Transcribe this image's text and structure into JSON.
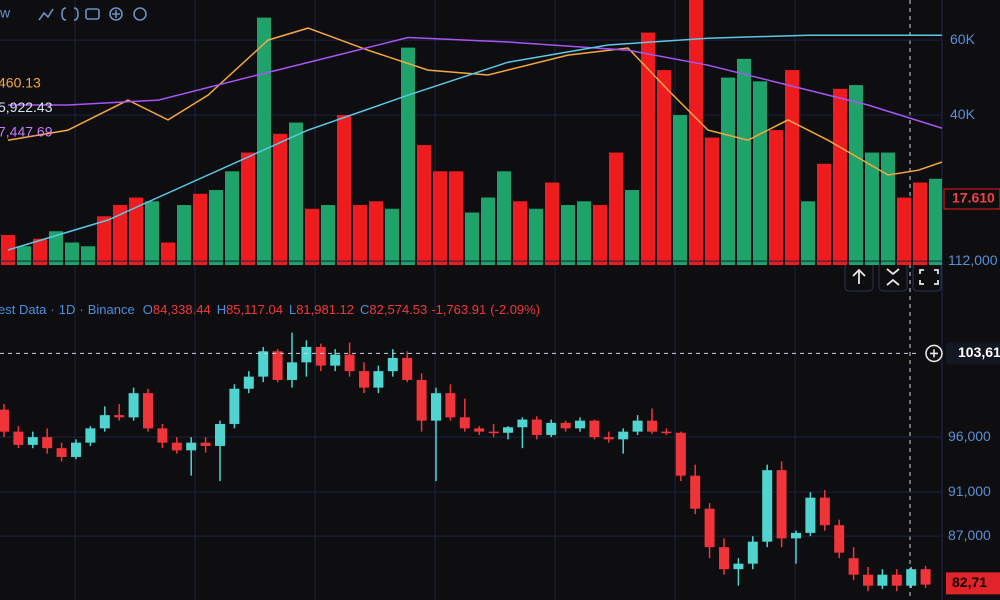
{
  "toolbar": {
    "label": "w"
  },
  "ma_legend": [
    {
      "text": "460.13",
      "color": "#f5a742"
    },
    {
      "text": "5,922.43",
      "color": "#d7e3f4"
    },
    {
      "text": "7,447.69",
      "color": "#c27cf6"
    }
  ],
  "header": {
    "source": "est Data",
    "interval": "1D",
    "exchange": "Binance",
    "ohlc": [
      {
        "key": "O",
        "value": "84,338.44"
      },
      {
        "key": "H",
        "value": "85,117.04"
      },
      {
        "key": "L",
        "value": "81,981.12"
      },
      {
        "key": "C",
        "value": "82,574.53"
      }
    ],
    "change": "-1,763.91",
    "change_pct": "(-2.09%)"
  },
  "chart_data": [
    {
      "type": "bar",
      "values": [
        8,
        5,
        7,
        9,
        6,
        5,
        13,
        16,
        18,
        17,
        6,
        16,
        19,
        20,
        25,
        30,
        66,
        35,
        38,
        15,
        16,
        40,
        16,
        17,
        15,
        58,
        32,
        25,
        25,
        14,
        18,
        25,
        17,
        15,
        22,
        16,
        17,
        16,
        30,
        20,
        62,
        52,
        40,
        72,
        34,
        50,
        55,
        49,
        36,
        52,
        17,
        27,
        47,
        48,
        30,
        30,
        18,
        22,
        23
      ],
      "colors": [
        "#ee1b1f",
        "#1fa36a",
        "#ee1b1f",
        "#1fa36a",
        "#1fa36a",
        "#1fa36a",
        "#ee1b1f",
        "#ee1b1f",
        "#ee1b1f",
        "#1fa36a",
        "#ee1b1f",
        "#1fa36a",
        "#ee1b1f",
        "#1fa36a",
        "#1fa36a",
        "#ee1b1f",
        "#1fa36a",
        "#ee1b1f",
        "#1fa36a",
        "#ee1b1f",
        "#1fa36a",
        "#ee1b1f",
        "#ee1b1f",
        "#ee1b1f",
        "#1fa36a",
        "#1fa36a",
        "#ee1b1f",
        "#ee1b1f",
        "#ee1b1f",
        "#1fa36a",
        "#1fa36a",
        "#1fa36a",
        "#ee1b1f",
        "#1fa36a",
        "#ee1b1f",
        "#1fa36a",
        "#1fa36a",
        "#ee1b1f",
        "#ee1b1f",
        "#1fa36a",
        "#ee1b1f",
        "#ee1b1f",
        "#1fa36a",
        "#ee1b1f",
        "#ee1b1f",
        "#1fa36a",
        "#1fa36a",
        "#1fa36a",
        "#ee1b1f",
        "#ee1b1f",
        "#1fa36a",
        "#ee1b1f",
        "#ee1b1f",
        "#1fa36a",
        "#1fa36a",
        "#1fa36a",
        "#ee1b1f",
        "#ee1b1f",
        "#1fa36a"
      ],
      "ylim": [
        0,
        70.7
      ],
      "yticks": [
        {
          "value": 40,
          "label": "40K"
        },
        {
          "value": 60,
          "label": "60K"
        }
      ],
      "lines": [
        {
          "color": "#f5a742",
          "x": [
            0,
            3.75,
            7.5,
            10,
            12.5,
            16.25,
            18.75,
            22.5,
            26.25,
            30,
            35,
            38.75,
            41.25,
            43.75,
            46.25,
            48.75,
            51.25,
            55,
            56.9,
            58.75
          ],
          "values": [
            33.3,
            36,
            44,
            38.7,
            45.3,
            60,
            63.2,
            57.3,
            52,
            50.7,
            56,
            57.9,
            46.7,
            36,
            33.3,
            38.7,
            33.3,
            24,
            25.3,
            28
          ]
        },
        {
          "color": "#a855f7",
          "x": [
            0,
            3.75,
            9.4,
            15.6,
            20.6,
            25,
            31.25,
            38.75,
            43.75,
            48.75,
            53.75,
            58.75
          ],
          "values": [
            42.7,
            42.7,
            44,
            50.7,
            56,
            60.7,
            59.5,
            57.3,
            53.3,
            48,
            42.7,
            36
          ]
        },
        {
          "color": "#5bc8e8",
          "x": [
            0,
            6.25,
            12.5,
            18.75,
            25,
            31.25,
            37.5,
            43.75,
            50,
            58.75
          ],
          "values": [
            4,
            12,
            24,
            36,
            45.3,
            54.1,
            58.7,
            60.5,
            61.3,
            61.3
          ]
        }
      ],
      "last_value": {
        "value": 17.61,
        "label": "17.610"
      },
      "grid": true
    },
    {
      "type": "candlestick",
      "open": [
        98500,
        96500,
        95300,
        96000,
        95000,
        94200,
        95500,
        96800,
        98000,
        97800,
        100000,
        96800,
        95500,
        94800,
        95500,
        95200,
        97200,
        100400,
        101500,
        103800,
        101200,
        102800,
        104200,
        102500,
        103500,
        102000,
        100500,
        102000,
        103200,
        101200,
        97500,
        100000,
        97800,
        96800,
        96500,
        96400,
        96900,
        97600,
        96200,
        97300,
        96800,
        97500,
        96000,
        95800,
        96500,
        97500,
        96500,
        96400,
        92500,
        89500,
        86000,
        84000,
        84500,
        86500,
        93000,
        86800,
        87300,
        90500,
        88000,
        85000,
        83500,
        82500,
        83500,
        82500,
        84000
      ],
      "high": [
        99000,
        97000,
        96500,
        96800,
        95500,
        95800,
        97000,
        98800,
        99000,
        100500,
        100400,
        97200,
        96000,
        96000,
        96000,
        97500,
        100800,
        102000,
        104200,
        104000,
        105500,
        104800,
        104500,
        104000,
        104600,
        102800,
        102500,
        104000,
        103800,
        101800,
        100500,
        100800,
        99500,
        97000,
        97200,
        97000,
        97800,
        97900,
        97600,
        97500,
        97800,
        97600,
        96500,
        96800,
        98000,
        98600,
        96800,
        96500,
        93500,
        90000,
        86800,
        85000,
        87000,
        93500,
        93800,
        87500,
        91000,
        91200,
        88500,
        86000,
        84200,
        84000,
        84000,
        84200,
        84300
      ],
      "low": [
        96000,
        95000,
        95000,
        94500,
        93800,
        94000,
        95200,
        96500,
        97500,
        97500,
        96500,
        95000,
        94500,
        92500,
        94600,
        92000,
        96800,
        100000,
        101000,
        101000,
        100500,
        101500,
        102000,
        102000,
        101500,
        100000,
        100000,
        101500,
        101000,
        96500,
        92000,
        97500,
        96500,
        96200,
        96000,
        95800,
        95000,
        95800,
        96000,
        96500,
        96500,
        95800,
        95500,
        94500,
        96200,
        96300,
        96200,
        92000,
        89000,
        85000,
        83500,
        82500,
        84000,
        86000,
        86000,
        84500,
        87000,
        87500,
        85000,
        83000,
        82000,
        82200,
        82000,
        82300,
        82300
      ],
      "close": [
        96500,
        95300,
        96000,
        95000,
        94200,
        95500,
        96800,
        98000,
        97800,
        100000,
        96800,
        95500,
        94800,
        95500,
        95200,
        97200,
        100400,
        101500,
        103800,
        101200,
        102800,
        104200,
        102500,
        103500,
        102000,
        100500,
        102000,
        103200,
        101200,
        97500,
        100000,
        97800,
        96800,
        96500,
        96400,
        96900,
        97600,
        96200,
        97300,
        96800,
        97500,
        96000,
        95800,
        96500,
        97500,
        96500,
        96400,
        92500,
        89500,
        86000,
        84000,
        84500,
        86500,
        93000,
        86800,
        87300,
        90500,
        88000,
        85500,
        83500,
        82500,
        83500,
        82500,
        84000,
        82600
      ],
      "up_color": "#4fd4d0",
      "down_color": "#f0353a",
      "ylim": [
        81200,
        112100
      ],
      "yticks": [
        {
          "value": 112000,
          "label": "112,000"
        },
        {
          "value": 96000,
          "label": "96,000"
        },
        {
          "value": 91000,
          "label": "91,000"
        },
        {
          "value": 87000,
          "label": "87,000"
        }
      ],
      "crosshair": {
        "value": 103610,
        "label": "103,61"
      },
      "last_price": {
        "value": 82710,
        "label": "82,71"
      },
      "grid": true
    }
  ]
}
